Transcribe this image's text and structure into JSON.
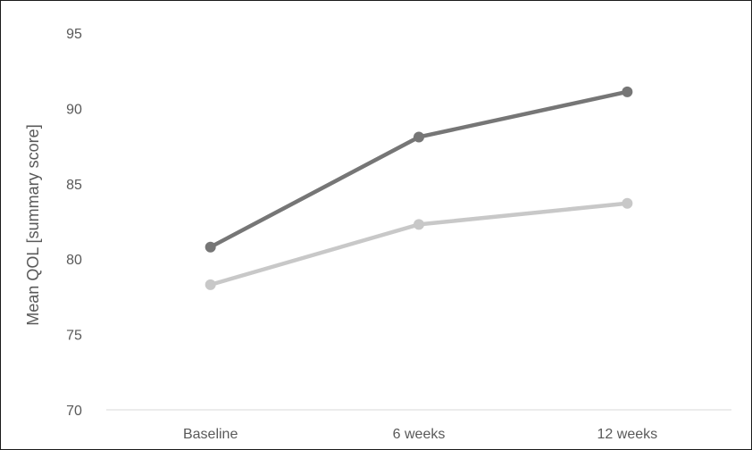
{
  "chart_data": {
    "type": "line",
    "title": "",
    "xlabel": "",
    "ylabel": "Mean QOL [summary score]",
    "categories": [
      "Baseline",
      "6 weeks",
      "12 weeks"
    ],
    "ylim": [
      70,
      95
    ],
    "yticks": [
      70,
      75,
      80,
      85,
      90,
      95
    ],
    "grid": false,
    "legend": "none",
    "series": [
      {
        "values": [
          80.8,
          88.1,
          91.1
        ],
        "color": "#767676"
      },
      {
        "values": [
          78.3,
          82.3,
          83.7
        ],
        "color": "#c8c8c8"
      }
    ]
  }
}
